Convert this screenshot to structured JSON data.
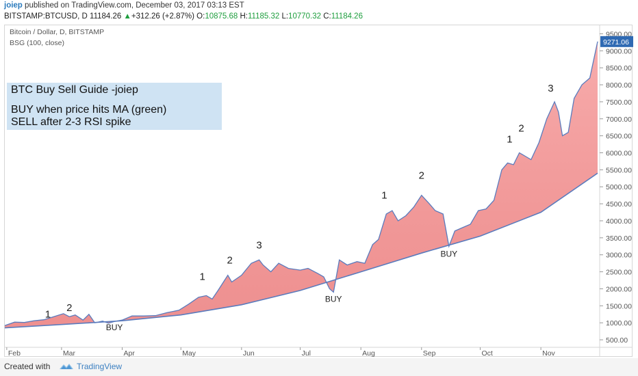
{
  "header": {
    "user": "joiep",
    "published": "published on TradingView.com, December 03, 2017 03:13 EST",
    "symbol": "BITSTAMP:BTCUSD, D",
    "last": "11184.26",
    "change_arrow": "▲",
    "change": "+312.26 (+2.87%)",
    "o_label": "O:",
    "o_value": "10875.68",
    "h_label": "H:",
    "h_value": "11185.32",
    "l_label": "L:",
    "l_value": "10770.32",
    "c_label": "C:",
    "c_value": "11184.26"
  },
  "chart_title": "Bitcoin / Dollar, D, BITSTAMP",
  "indicator_label": "BSG (100, close)",
  "annotation_box": {
    "line1": "BTC Buy Sell Guide -joiep",
    "line2": "BUY when price hits MA (green)",
    "line3": "SELL after 2-3 RSI spike"
  },
  "footer": {
    "created_with": "Created with",
    "brand": "TradingView"
  },
  "colors": {
    "price_line": "#5a7bbd",
    "fill": "#f7a8a8",
    "fill_dark": "#e86b6b",
    "price_badge": "#2f6ab3"
  },
  "chart_data": {
    "type": "area",
    "ylim": [
      300,
      9750
    ],
    "yticks": [
      500,
      1000,
      1500,
      2000,
      2500,
      3000,
      3500,
      4000,
      4500,
      5000,
      5500,
      6000,
      6500,
      7000,
      7500,
      8000,
      8500,
      9000,
      9500
    ],
    "ytick_labels": [
      "500.00",
      "1000.00",
      "1500.00",
      "2000.00",
      "2500.00",
      "3000.00",
      "3500.00",
      "4000.00",
      "4500.00",
      "5000.00",
      "5500.00",
      "6000.00",
      "6500.00",
      "7000.00",
      "7500.00",
      "8000.00",
      "8500.00",
      "9000.00",
      "9500.00"
    ],
    "x_domain": [
      "2017-01-31",
      "2017-11-30"
    ],
    "xticks": [
      "2017-02-01",
      "2017-03-01",
      "2017-04-01",
      "2017-05-01",
      "2017-06-01",
      "2017-07-01",
      "2017-08-01",
      "2017-09-01",
      "2017-10-01",
      "2017-11-01"
    ],
    "xtick_labels": [
      "Feb",
      "Mar",
      "Apr",
      "May",
      "Jun",
      "Jul",
      "Aug",
      "Sep",
      "Oct",
      "Nov"
    ],
    "last_price_label": "9271.06",
    "last_price": 9271.06,
    "series": [
      {
        "role": "price",
        "x": [
          "2017-01-31",
          "2017-02-05",
          "2017-02-10",
          "2017-02-15",
          "2017-02-20",
          "2017-02-25",
          "2017-03-02",
          "2017-03-05",
          "2017-03-08",
          "2017-03-12",
          "2017-03-15",
          "2017-03-18",
          "2017-03-22",
          "2017-03-25",
          "2017-03-28",
          "2017-04-01",
          "2017-04-06",
          "2017-04-12",
          "2017-04-18",
          "2017-04-24",
          "2017-04-30",
          "2017-05-05",
          "2017-05-10",
          "2017-05-14",
          "2017-05-17",
          "2017-05-20",
          "2017-05-25",
          "2017-05-27",
          "2017-06-01",
          "2017-06-06",
          "2017-06-10",
          "2017-06-12",
          "2017-06-16",
          "2017-06-20",
          "2017-06-25",
          "2017-07-01",
          "2017-07-05",
          "2017-07-10",
          "2017-07-13",
          "2017-07-16",
          "2017-07-18",
          "2017-07-21",
          "2017-07-25",
          "2017-07-30",
          "2017-08-03",
          "2017-08-07",
          "2017-08-10",
          "2017-08-14",
          "2017-08-17",
          "2017-08-20",
          "2017-08-24",
          "2017-08-28",
          "2017-09-01",
          "2017-09-05",
          "2017-09-08",
          "2017-09-12",
          "2017-09-15",
          "2017-09-18",
          "2017-09-22",
          "2017-09-26",
          "2017-09-30",
          "2017-10-04",
          "2017-10-08",
          "2017-10-12",
          "2017-10-15",
          "2017-10-18",
          "2017-10-21",
          "2017-10-24",
          "2017-10-27",
          "2017-10-31",
          "2017-11-04",
          "2017-11-08",
          "2017-11-10",
          "2017-11-12",
          "2017-11-15",
          "2017-11-18",
          "2017-11-22",
          "2017-11-26",
          "2017-11-30"
        ],
        "values": [
          920,
          1020,
          1010,
          1060,
          1090,
          1180,
          1270,
          1180,
          1230,
          1080,
          1250,
          1000,
          1050,
          990,
          1040,
          1080,
          1200,
          1200,
          1210,
          1300,
          1370,
          1550,
          1750,
          1800,
          1700,
          1950,
          2400,
          2200,
          2400,
          2750,
          2850,
          2700,
          2500,
          2750,
          2600,
          2550,
          2600,
          2450,
          2350,
          2000,
          1900,
          2850,
          2700,
          2800,
          2750,
          3300,
          3450,
          4200,
          4300,
          4000,
          4150,
          4400,
          4750,
          4500,
          4300,
          4200,
          3250,
          3700,
          3800,
          3900,
          4300,
          4350,
          4600,
          5500,
          5700,
          5650,
          6000,
          5900,
          5800,
          6300,
          7000,
          7500,
          7200,
          6500,
          6600,
          7600,
          8000,
          8200,
          9271.06
        ]
      },
      {
        "role": "moving_average",
        "x": [
          "2017-01-31",
          "2017-03-01",
          "2017-04-01",
          "2017-05-01",
          "2017-06-01",
          "2017-07-01",
          "2017-08-01",
          "2017-09-01",
          "2017-10-01",
          "2017-11-01",
          "2017-11-30"
        ],
        "values": [
          850,
          950,
          1060,
          1230,
          1530,
          1950,
          2500,
          3050,
          3550,
          4250,
          5400
        ]
      }
    ],
    "labels": [
      {
        "text": "1",
        "x": "2017-02-22",
        "y": 1150
      },
      {
        "text": "2",
        "x": "2017-03-05",
        "y": 1350
      },
      {
        "text": "BUY",
        "x": "2017-03-28",
        "y": 780
      },
      {
        "text": "1",
        "x": "2017-05-12",
        "y": 2260
      },
      {
        "text": "2",
        "x": "2017-05-26",
        "y": 2740
      },
      {
        "text": "3",
        "x": "2017-06-10",
        "y": 3190
      },
      {
        "text": "BUY",
        "x": "2017-07-18",
        "y": 1620
      },
      {
        "text": "1",
        "x": "2017-08-13",
        "y": 4650
      },
      {
        "text": "2",
        "x": "2017-09-01",
        "y": 5240
      },
      {
        "text": "BUY",
        "x": "2017-09-15",
        "y": 2940
      },
      {
        "text": "1",
        "x": "2017-10-16",
        "y": 6300
      },
      {
        "text": "2",
        "x": "2017-10-22",
        "y": 6620
      },
      {
        "text": "3",
        "x": "2017-11-06",
        "y": 7800
      }
    ]
  }
}
